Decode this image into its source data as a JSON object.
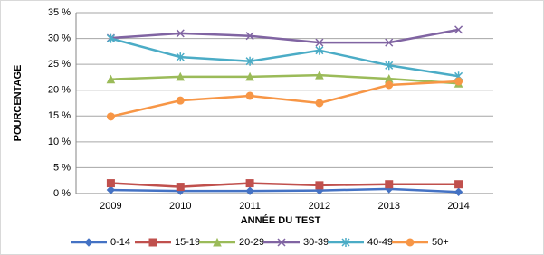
{
  "chart_data": {
    "type": "line",
    "xlabel": "ANNÉE DU TEST",
    "ylabel": "POURCENTAGE",
    "categories": [
      "2009",
      "2010",
      "2011",
      "2012",
      "2013",
      "2014"
    ],
    "ylim": [
      0,
      35
    ],
    "yticks": [
      {
        "value": 0,
        "label": "0 %"
      },
      {
        "value": 5,
        "label": "5 %"
      },
      {
        "value": 10,
        "label": "10 %"
      },
      {
        "value": 15,
        "label": "15 %"
      },
      {
        "value": 20,
        "label": "20 %"
      },
      {
        "value": 25,
        "label": "25 %"
      },
      {
        "value": 30,
        "label": "30 %"
      },
      {
        "value": 35,
        "label": "35 %"
      }
    ],
    "grid": true,
    "legend": "bottom",
    "series": [
      {
        "name": "0-14",
        "color": "#4472c4",
        "marker": "diamond",
        "values": [
          0.7,
          0.5,
          0.5,
          0.6,
          0.9,
          0.3
        ]
      },
      {
        "name": "15-19",
        "color": "#c0504d",
        "marker": "square",
        "values": [
          2.0,
          1.3,
          2.0,
          1.6,
          1.8,
          1.8
        ]
      },
      {
        "name": "20-29",
        "color": "#9bbb59",
        "marker": "triangle",
        "values": [
          22.1,
          22.6,
          22.6,
          22.9,
          22.2,
          21.3
        ]
      },
      {
        "name": "30-39",
        "color": "#8064a2",
        "marker": "x",
        "values": [
          30.1,
          31.0,
          30.5,
          29.2,
          29.2,
          31.7
        ]
      },
      {
        "name": "40-49",
        "color": "#4bacc6",
        "marker": "star",
        "values": [
          30.0,
          26.4,
          25.6,
          27.7,
          24.8,
          22.7
        ]
      },
      {
        "name": "50+",
        "color": "#f79646",
        "marker": "circle",
        "values": [
          14.9,
          18.0,
          18.9,
          17.5,
          21.0,
          21.7
        ]
      }
    ]
  }
}
